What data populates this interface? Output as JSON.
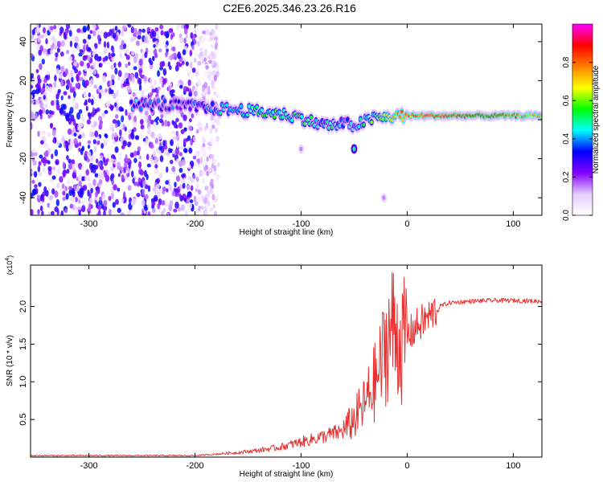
{
  "page": {
    "title": "C2E6.2025.346.23.26.R16"
  },
  "chart_data": [
    {
      "type": "heatmap",
      "xlabel": "Height of straight line (km)",
      "ylabel": "Frequency (Hz)",
      "xlim": [
        -355,
        127
      ],
      "ylim": [
        -49,
        49
      ],
      "xticks": [
        -300,
        -200,
        -100,
        0,
        100
      ],
      "yticks": [
        -40,
        -20,
        0,
        20,
        40
      ],
      "colorbar": {
        "label": "Normalized spectral amplitude",
        "range": [
          0,
          1
        ],
        "ticks": [
          0.0,
          0.2,
          0.4,
          0.6,
          0.8
        ],
        "tick_labels": [
          "0.0",
          "0.2",
          "0.4",
          "0.6",
          "0.8"
        ],
        "colormap": [
          "#ffffff",
          "#e6ccff",
          "#8000ff",
          "#0000ff",
          "#00ffff",
          "#00ff00",
          "#ffff00",
          "#ff8000",
          "#ff0000",
          "#ff00ff"
        ]
      },
      "noise_region": {
        "x": [
          -355,
          -190
        ],
        "amplitude": [
          0.05,
          0.35
        ]
      },
      "signal_track": [
        {
          "x": -260,
          "y": 8,
          "amp": 0.35
        },
        {
          "x": -210,
          "y": 7,
          "amp": 0.3
        },
        {
          "x": -190,
          "y": 6,
          "amp": 0.4
        },
        {
          "x": -160,
          "y": 5,
          "amp": 0.45
        },
        {
          "x": -140,
          "y": 4,
          "amp": 0.5
        },
        {
          "x": -120,
          "y": 3,
          "amp": 0.5
        },
        {
          "x": -100,
          "y": 1,
          "amp": 0.5
        },
        {
          "x": -85,
          "y": -2,
          "amp": 0.45
        },
        {
          "x": -70,
          "y": -3,
          "amp": 0.45
        },
        {
          "x": -60,
          "y": -2,
          "amp": 0.4
        },
        {
          "x": -50,
          "y": -3,
          "amp": 0.4
        },
        {
          "x": -40,
          "y": -1,
          "amp": 0.5
        },
        {
          "x": -30,
          "y": 1,
          "amp": 0.55
        },
        {
          "x": -20,
          "y": 1,
          "amp": 0.65
        },
        {
          "x": -10,
          "y": 2,
          "amp": 0.7
        },
        {
          "x": 0,
          "y": 2,
          "amp": 0.8
        },
        {
          "x": 30,
          "y": 2,
          "amp": 0.85
        },
        {
          "x": 60,
          "y": 2,
          "amp": 0.9
        },
        {
          "x": 90,
          "y": 2,
          "amp": 0.85
        },
        {
          "x": 127,
          "y": 2,
          "amp": 0.7
        }
      ],
      "isolated_features": [
        {
          "x": -50,
          "y": -15,
          "amp": 0.5
        },
        {
          "x": -100,
          "y": -15,
          "amp": 0.15
        },
        {
          "x": -22,
          "y": -40,
          "amp": 0.15
        }
      ]
    },
    {
      "type": "line",
      "xlabel": "Height of straight line (km)",
      "ylabel": "SNR (10 * v/v)",
      "multiplier": "(x10",
      "multiplier_exp": "4",
      "multiplier_close": ")",
      "xlim": [
        -355,
        127
      ],
      "ylim": [
        0,
        2.55
      ],
      "xticks": [
        -300,
        -200,
        -100,
        0,
        100
      ],
      "yticks": [
        0.5,
        1.0,
        1.5,
        2.0
      ],
      "ytick_labels": [
        "0.5",
        "1.0",
        "1.5",
        "2.0"
      ],
      "series": [
        {
          "color": "#e83030",
          "x": [
            -355,
            -250,
            -200,
            -180,
            -160,
            -140,
            -120,
            -100,
            -80,
            -60,
            -50,
            -40,
            -30,
            -25,
            -20,
            -15,
            -10,
            -5,
            0,
            10,
            20,
            30,
            40,
            60,
            80,
            100,
            127
          ],
          "y": [
            0.02,
            0.02,
            0.02,
            0.04,
            0.06,
            0.09,
            0.13,
            0.2,
            0.27,
            0.35,
            0.5,
            0.7,
            1.0,
            1.2,
            1.5,
            1.7,
            1.65,
            1.5,
            1.6,
            1.75,
            1.85,
            2.0,
            2.05,
            2.07,
            2.08,
            2.08,
            2.07
          ]
        }
      ]
    }
  ]
}
